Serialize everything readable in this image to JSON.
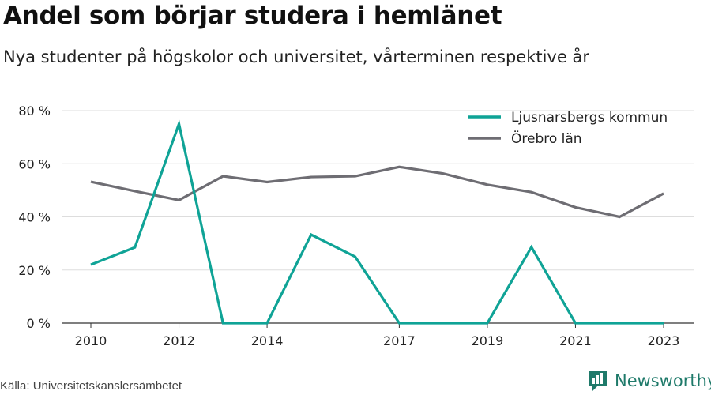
{
  "title": "Andel som börjar studera i hemlänet",
  "subtitle": "Nya studenter på högskolor och universitet, vårterminen respektive år",
  "source": "Källa: Universitetskanslersämbetet",
  "brand": {
    "name": "Newsworthy",
    "icon": "bar-chart-icon",
    "color": "#1f7a6a"
  },
  "chart_data": {
    "type": "line",
    "x": [
      2010,
      2011,
      2012,
      2013,
      2014,
      2015,
      2016,
      2017,
      2018,
      2019,
      2020,
      2021,
      2022,
      2023
    ],
    "x_ticks": [
      2010,
      2012,
      2014,
      2017,
      2019,
      2021,
      2023
    ],
    "x_tick_labels": [
      "2010",
      "2012",
      "2014",
      "2017",
      "2019",
      "2021",
      "2023"
    ],
    "y_ticks": [
      0,
      20,
      40,
      60,
      80
    ],
    "y_tick_labels": [
      "0 %",
      "20 %",
      "40 %",
      "60 %",
      "80 %"
    ],
    "ylim": [
      0,
      80
    ],
    "grid": true,
    "legend_position": "top-right",
    "series": [
      {
        "name": "Ljusnarsbergs kommun",
        "color": "#0fa396",
        "values": [
          22,
          28.5,
          75,
          0,
          0,
          33.3,
          25,
          0,
          0,
          0,
          28.6,
          0,
          0,
          0
        ]
      },
      {
        "name": "Örebro län",
        "color": "#6e6d73",
        "values": [
          53.2,
          49.7,
          46.3,
          55.3,
          53.1,
          55,
          55.3,
          58.8,
          56.3,
          52.1,
          49.3,
          43.6,
          40,
          48.8
        ]
      }
    ]
  }
}
